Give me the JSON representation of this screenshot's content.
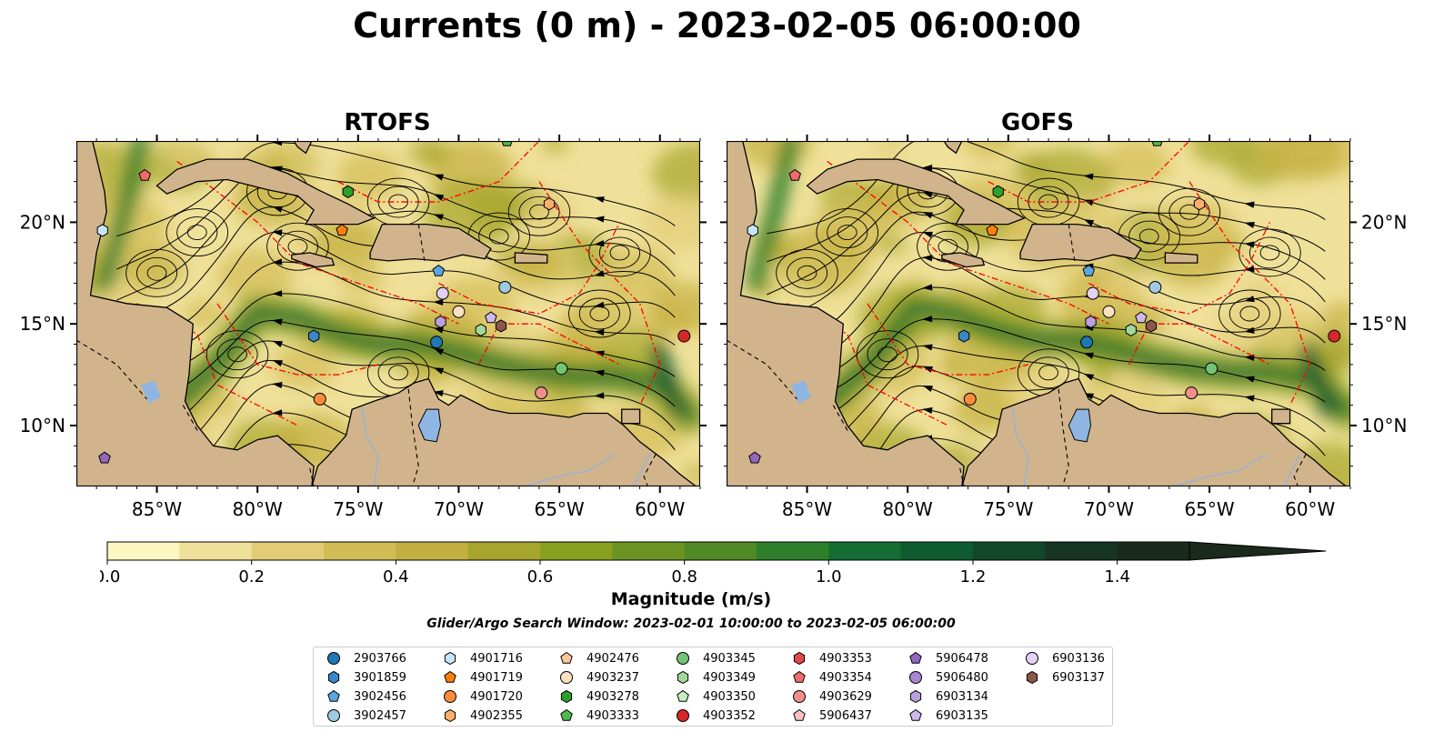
{
  "title": "Currents (0 m) - 2023-02-05 06:00:00",
  "panels": [
    {
      "title": "RTOFS"
    },
    {
      "title": "GOFS"
    }
  ],
  "axes": {
    "lon_ticks": [
      "85°W",
      "80°W",
      "75°W",
      "70°W",
      "65°W",
      "60°W"
    ],
    "lat_ticks": [
      "20°N",
      "15°N",
      "10°N"
    ],
    "lon_range": [
      -89,
      -58
    ],
    "lat_range": [
      7,
      24
    ]
  },
  "colorbar": {
    "label": "Magnitude (m/s)",
    "ticks": [
      "0.0",
      "0.2",
      "0.4",
      "0.6",
      "0.8",
      "1.0",
      "1.2",
      "1.4"
    ],
    "range": [
      0,
      1.5
    ],
    "extend": "max",
    "colors": [
      "#fef6c0",
      "#f0e19a",
      "#e2cd76",
      "#d2bc55",
      "#c3af3f",
      "#a7a52b",
      "#88a01e",
      "#6b9323",
      "#4f8a24",
      "#2e7f2c",
      "#156d33",
      "#0d5b2e",
      "#12472a",
      "#173524",
      "#1a2a1c"
    ]
  },
  "search_window": "Glider/Argo Search Window: 2023-02-01 10:00:00 to 2023-02-05 06:00:00",
  "map_colors": {
    "land": "#d2b48c",
    "water_body": "#8fb6e2",
    "river": "#9bb3cf",
    "eez": "#ff0000",
    "streamline": "#000000"
  },
  "legend": [
    {
      "id": "2903766",
      "marker": "circle",
      "color": "#1f77b4"
    },
    {
      "id": "3901859",
      "marker": "hexagon",
      "color": "#3a86c8"
    },
    {
      "id": "3902456",
      "marker": "pentagon",
      "color": "#5aa7e0"
    },
    {
      "id": "3902457",
      "marker": "circle",
      "color": "#9ecae1"
    },
    {
      "id": "4901716",
      "marker": "hexagon",
      "color": "#c6e6f7"
    },
    {
      "id": "4901719",
      "marker": "pentagon",
      "color": "#ff7f0e"
    },
    {
      "id": "4901720",
      "marker": "circle",
      "color": "#fd8d3c"
    },
    {
      "id": "4902355",
      "marker": "hexagon",
      "color": "#fdae6b"
    },
    {
      "id": "4902476",
      "marker": "pentagon",
      "color": "#fdc897"
    },
    {
      "id": "4903237",
      "marker": "circle",
      "color": "#fee0c0"
    },
    {
      "id": "4903278",
      "marker": "hexagon",
      "color": "#2ca02c"
    },
    {
      "id": "4903333",
      "marker": "pentagon",
      "color": "#4cbb4c"
    },
    {
      "id": "4903345",
      "marker": "circle",
      "color": "#74c476"
    },
    {
      "id": "4903349",
      "marker": "hexagon",
      "color": "#a1d99b"
    },
    {
      "id": "4903350",
      "marker": "pentagon",
      "color": "#c7efc0"
    },
    {
      "id": "4903352",
      "marker": "circle",
      "color": "#d62728"
    },
    {
      "id": "4903353",
      "marker": "hexagon",
      "color": "#e34a4a"
    },
    {
      "id": "4903354",
      "marker": "pentagon",
      "color": "#ef6b6b"
    },
    {
      "id": "4903629",
      "marker": "circle",
      "color": "#f28e8e"
    },
    {
      "id": "5906437",
      "marker": "pentagon",
      "color": "#fbc0c0"
    },
    {
      "id": "5906478",
      "marker": "pentagon",
      "color": "#9467bd"
    },
    {
      "id": "5906480",
      "marker": "circle",
      "color": "#a785d0"
    },
    {
      "id": "6903134",
      "marker": "hexagon",
      "color": "#bca0de"
    },
    {
      "id": "6903135",
      "marker": "pentagon",
      "color": "#d0b8ea"
    },
    {
      "id": "6903136",
      "marker": "circle",
      "color": "#e4cff6"
    },
    {
      "id": "6903137",
      "marker": "hexagon",
      "color": "#8c564b"
    }
  ],
  "float_positions": [
    {
      "id": "2903766",
      "lon": -71.1,
      "lat": 14.1
    },
    {
      "id": "3901859",
      "lon": -77.2,
      "lat": 14.4
    },
    {
      "id": "3902456",
      "lon": -71.0,
      "lat": 17.6
    },
    {
      "id": "3902457",
      "lon": -67.7,
      "lat": 16.8
    },
    {
      "id": "4901716",
      "lon": -87.7,
      "lat": 19.6
    },
    {
      "id": "4901719",
      "lon": -75.8,
      "lat": 19.6
    },
    {
      "id": "4901720",
      "lon": -76.9,
      "lat": 11.3
    },
    {
      "id": "4902355",
      "lon": -65.5,
      "lat": 20.9
    },
    {
      "id": "4903237",
      "lon": -70.0,
      "lat": 15.6
    },
    {
      "id": "4903278",
      "lon": -75.5,
      "lat": 21.5
    },
    {
      "id": "4903333",
      "lon": -67.6,
      "lat": 24.0
    },
    {
      "id": "4903345",
      "lon": -64.9,
      "lat": 12.8
    },
    {
      "id": "4903349",
      "lon": -68.9,
      "lat": 14.7
    },
    {
      "id": "4903352",
      "lon": -58.8,
      "lat": 14.4
    },
    {
      "id": "4903354",
      "lon": -85.6,
      "lat": 22.3
    },
    {
      "id": "4903629",
      "lon": -65.9,
      "lat": 11.6
    },
    {
      "id": "5906478",
      "lon": -87.6,
      "lat": 8.4
    },
    {
      "id": "6903134",
      "lon": -70.9,
      "lat": 15.1
    },
    {
      "id": "6903135",
      "lon": -68.4,
      "lat": 15.3
    },
    {
      "id": "6903136",
      "lon": -70.8,
      "lat": 16.5
    },
    {
      "id": "6903137",
      "lon": -67.9,
      "lat": 14.9
    }
  ]
}
